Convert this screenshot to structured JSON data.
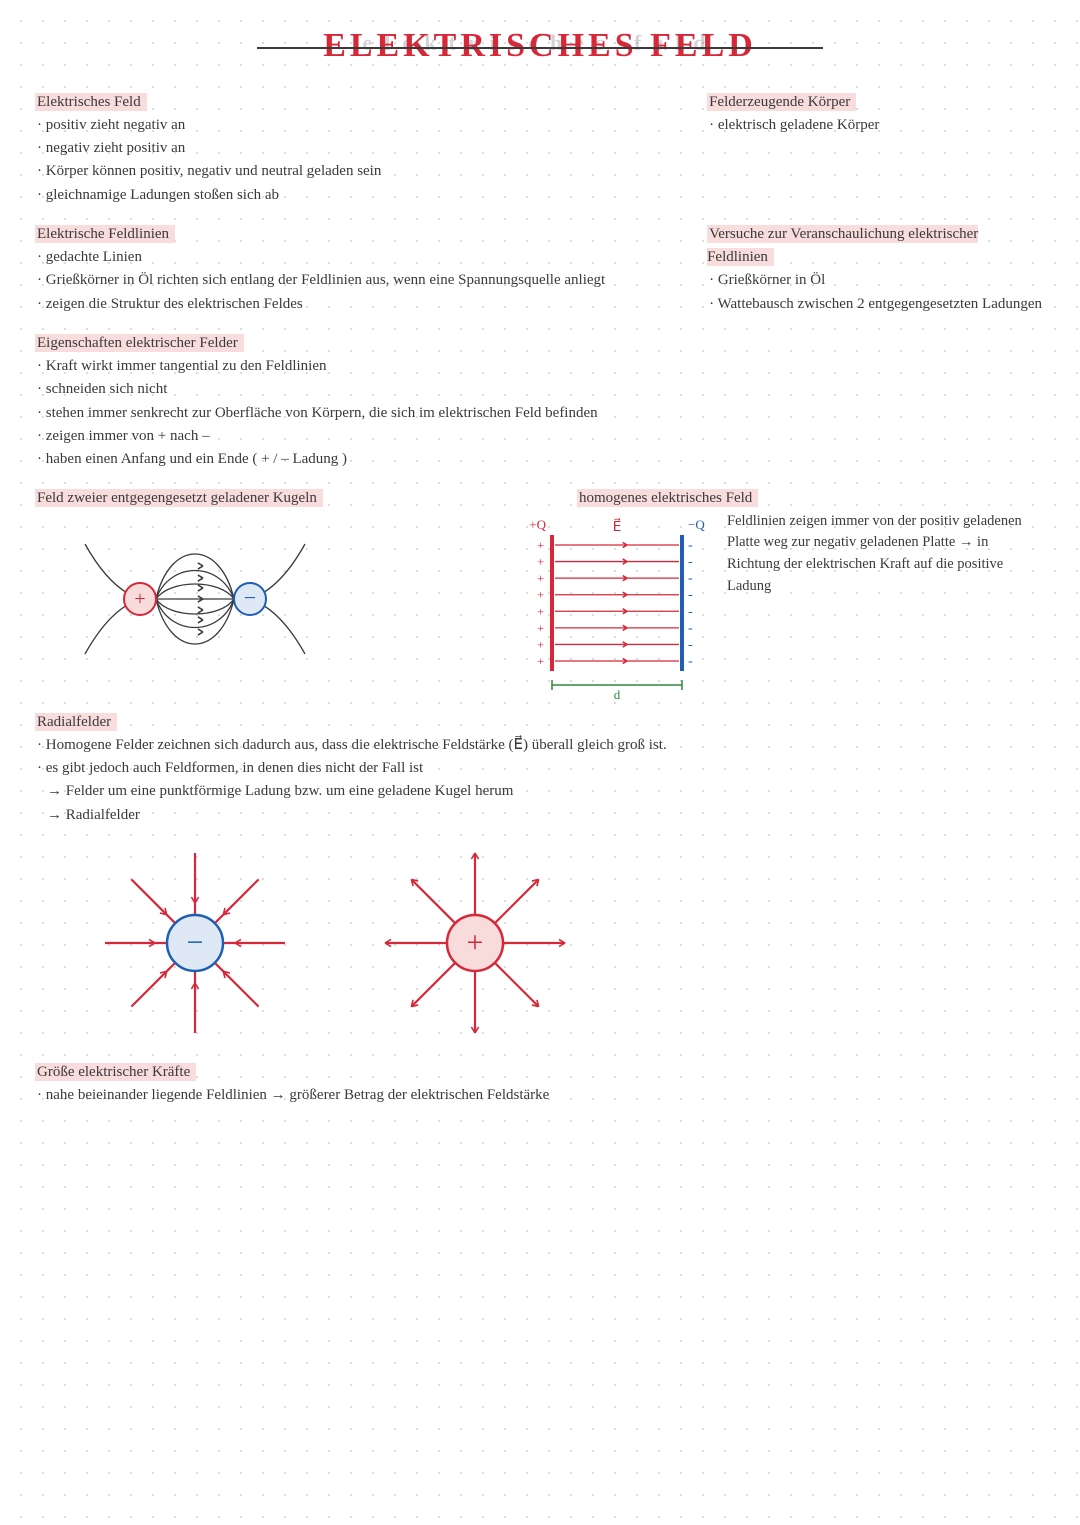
{
  "colors": {
    "ink": "#3a3a3a",
    "title": "#d62839",
    "highlight": "#f9dcdc",
    "dot": "#d0d0d5",
    "red": "#d62839",
    "blue": "#1e5fb3",
    "green": "#2e8b3d"
  },
  "title": "ELEKTRISCHES FELD",
  "title_shadow": "elektrisches feld",
  "sec1": {
    "heading": "Elektrisches Feld",
    "items": [
      "positiv zieht negativ an",
      "negativ zieht positiv an",
      "Körper können positiv, negativ und neutral geladen sein",
      "gleichnamige Ladungen stoßen sich ab"
    ]
  },
  "sec2": {
    "heading": "Felderzeugende Körper",
    "items": [
      "elektrisch geladene Körper"
    ]
  },
  "sec3": {
    "heading": "Elektrische Feldlinien",
    "items": [
      "gedachte Linien",
      "Grießkörner in Öl richten sich entlang der Feldlinien aus, wenn eine Spannungsquelle anliegt",
      "zeigen die Struktur des elektrischen Feldes"
    ]
  },
  "sec4": {
    "heading": "Versuche zur Veranschaulichung elektrischer Feldlinien",
    "items": [
      "Grießkörner in Öl",
      "Wattebausch zwischen 2 entgegengesetzten Ladungen"
    ]
  },
  "sec5": {
    "heading": "Eigenschaften elektrischer Felder",
    "items": [
      "Kraft wirkt immer tangential zu den Feldlinien",
      "schneiden sich nicht",
      "stehen immer senkrecht zur Oberfläche von Körpern, die sich im elektrischen Feld befinden",
      "zeigen immer von + nach –",
      "haben einen Anfang und ein Ende  ( + / – Ladung )"
    ]
  },
  "dipole": {
    "heading": "Feld zweier entgegengesetzt geladener Kugeln",
    "pos_color": "#d62839",
    "neg_color": "#1e5fb3",
    "line_color": "#3a3a3a",
    "pos_label": "+",
    "neg_label": "−"
  },
  "homo": {
    "heading": "homogenes elektrisches Feld",
    "pos_plate_color": "#d62839",
    "neg_plate_color": "#1e5fb3",
    "line_color": "#d62839",
    "dim_color": "#2e8b3d",
    "text_color": "#3a3a3a",
    "label_plusQ": "+Q",
    "label_minusQ": "−Q",
    "label_E": "E⃗",
    "label_d": "d",
    "n_lines": 8,
    "description": "Feldlinien zeigen immer von der positiv geladenen Platte weg zur negativ geladenen Platte → in Richtung der elektrischen Kraft auf die positive Ladung"
  },
  "radial": {
    "heading": "Radialfelder",
    "items": [
      "Homogene Felder zeichnen sich dadurch aus, dass die elektrische Feldstärke (E⃗) überall gleich groß ist.",
      "es gibt jedoch auch Feldformen, in denen dies nicht der Fall ist"
    ],
    "subs": [
      "Felder um eine punktförmige Ladung bzw. um eine geladene Kugel herum",
      "Radialfelder"
    ],
    "neg": {
      "circle_color": "#1e5fb3",
      "fill": "#dfe9f6",
      "arrow_color": "#d62839",
      "label": "−",
      "inward": true
    },
    "pos": {
      "circle_color": "#d62839",
      "fill": "#f8dcdc",
      "arrow_color": "#d62839",
      "label": "+",
      "inward": false
    },
    "n_arrows": 8,
    "radius_inner": 28,
    "radius_outer": 90
  },
  "sec6": {
    "heading": "Größe elektrischer Kräfte",
    "items": [
      "nahe beieinander liegende Feldlinien → größerer Betrag der elektrischen Feldstärke"
    ]
  }
}
